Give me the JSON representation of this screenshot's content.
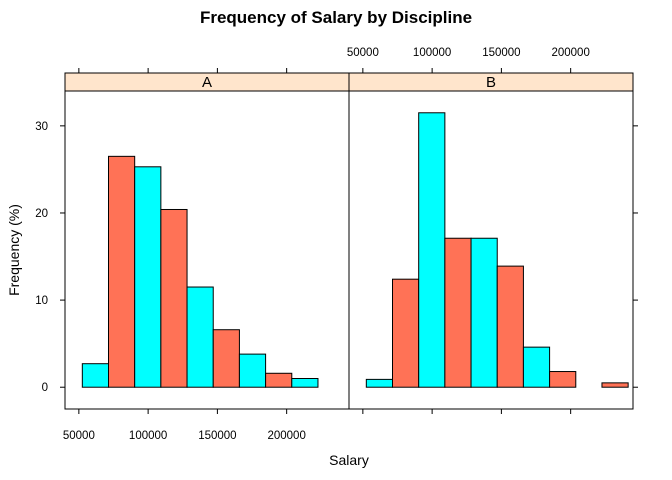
{
  "chart_data": {
    "type": "bar",
    "title": "Frequency of Salary by Discipline",
    "xlabel": "Salary",
    "ylabel": "Frequency (%)",
    "xlim": [
      40000,
      245000
    ],
    "ylim": [
      -2.5,
      34
    ],
    "x_ticks": [
      50000,
      100000,
      150000,
      200000
    ],
    "y_ticks": [
      0,
      10,
      20,
      30
    ],
    "colors": {
      "salmon": "#ff7256",
      "cyan": "#00ffff",
      "strip": "#ffe5cc"
    },
    "panels": [
      {
        "name": "A",
        "bins": [
          {
            "x0": 52500,
            "x1": 71400,
            "value": 2.7,
            "color": "cyan"
          },
          {
            "x0": 71400,
            "x1": 90300,
            "value": 26.5,
            "color": "salmon"
          },
          {
            "x0": 90300,
            "x1": 109200,
            "value": 25.3,
            "color": "cyan"
          },
          {
            "x0": 109200,
            "x1": 128100,
            "value": 20.4,
            "color": "salmon"
          },
          {
            "x0": 128100,
            "x1": 147000,
            "value": 11.5,
            "color": "cyan"
          },
          {
            "x0": 147000,
            "x1": 165900,
            "value": 6.6,
            "color": "salmon"
          },
          {
            "x0": 165900,
            "x1": 184800,
            "value": 3.8,
            "color": "cyan"
          },
          {
            "x0": 184800,
            "x1": 203700,
            "value": 1.6,
            "color": "salmon"
          },
          {
            "x0": 203700,
            "x1": 222600,
            "value": 1.0,
            "color": "cyan"
          }
        ]
      },
      {
        "name": "B",
        "bins": [
          {
            "x0": 52500,
            "x1": 71400,
            "value": 0.9,
            "color": "cyan"
          },
          {
            "x0": 71400,
            "x1": 90300,
            "value": 12.4,
            "color": "salmon"
          },
          {
            "x0": 90300,
            "x1": 109200,
            "value": 31.5,
            "color": "cyan"
          },
          {
            "x0": 109200,
            "x1": 128100,
            "value": 17.1,
            "color": "salmon"
          },
          {
            "x0": 128100,
            "x1": 147000,
            "value": 17.1,
            "color": "cyan"
          },
          {
            "x0": 147000,
            "x1": 165900,
            "value": 13.9,
            "color": "salmon"
          },
          {
            "x0": 165900,
            "x1": 184800,
            "value": 4.6,
            "color": "cyan"
          },
          {
            "x0": 184800,
            "x1": 203700,
            "value": 1.8,
            "color": "salmon"
          },
          {
            "x0": 203700,
            "x1": 222600,
            "value": 0.0,
            "color": "cyan"
          },
          {
            "x0": 222600,
            "x1": 241500,
            "value": 0.5,
            "color": "salmon"
          }
        ]
      }
    ]
  }
}
